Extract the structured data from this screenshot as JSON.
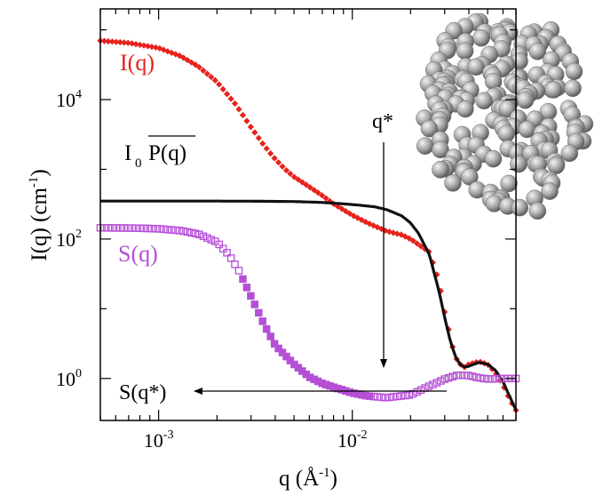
{
  "chart_data": {
    "type": "scatter",
    "x_scale": "log",
    "y_scale": "log",
    "xlim": [
      0.0005,
      0.07
    ],
    "ylim": [
      0.25,
      200000
    ],
    "grid": false,
    "ylabel_parts": {
      "main": "I(q) (cm",
      "sup": "-1",
      "close": ")"
    },
    "xlabel_parts": {
      "main": "q (Å",
      "sup": "-1",
      "close": ")"
    },
    "x_ticks": [
      {
        "value": 0.001,
        "base": "10",
        "exp": "-3"
      },
      {
        "value": 0.01,
        "base": "10",
        "exp": "-2"
      }
    ],
    "y_ticks": [
      {
        "value": 1,
        "base": "10",
        "exp": "0"
      },
      {
        "value": 100,
        "base": "10",
        "exp": "2"
      },
      {
        "value": 10000,
        "base": "10",
        "exp": "4"
      }
    ],
    "series": [
      {
        "name": "I(q)",
        "color": "#e8221c",
        "marker": "diamond",
        "x": [
          0.0005,
          0.0007,
          0.001,
          0.0013,
          0.0016,
          0.002,
          0.0025,
          0.003,
          0.0035,
          0.004,
          0.0045,
          0.005,
          0.006,
          0.007,
          0.008,
          0.01,
          0.012,
          0.015,
          0.018,
          0.02,
          0.025,
          0.028,
          0.03,
          0.033,
          0.035,
          0.038,
          0.04,
          0.045,
          0.05,
          0.055,
          0.06,
          0.065,
          0.07
        ],
        "y": [
          70000,
          65000,
          55000,
          42000,
          30000,
          18000,
          8500,
          4000,
          2200,
          1400,
          1000,
          780,
          560,
          420,
          320,
          220,
          170,
          130,
          115,
          100,
          65,
          25,
          9,
          2.8,
          1.7,
          1.45,
          1.6,
          1.75,
          1.6,
          1.2,
          0.8,
          0.5,
          0.35
        ]
      },
      {
        "name": "I0 P(q)",
        "color": "#111111",
        "marker": "line",
        "x": [
          0.0005,
          0.001,
          0.002,
          0.003,
          0.005,
          0.007,
          0.009,
          0.011,
          0.013,
          0.015,
          0.018,
          0.02,
          0.022,
          0.025,
          0.028,
          0.03,
          0.032,
          0.034,
          0.036,
          0.038,
          0.04,
          0.045,
          0.05,
          0.055,
          0.06,
          0.065,
          0.07
        ],
        "y": [
          350,
          350,
          350,
          349,
          345,
          335,
          320,
          305,
          290,
          265,
          215,
          170,
          120,
          60,
          18,
          7.5,
          3.5,
          2.1,
          1.6,
          1.45,
          1.5,
          1.7,
          1.6,
          1.3,
          0.9,
          0.55,
          0.35
        ]
      },
      {
        "name": "S(q)",
        "color": "#b54fd6",
        "marker": "square",
        "x": [
          0.0005,
          0.0008,
          0.001,
          0.0013,
          0.0016,
          0.002,
          0.0023,
          0.0026,
          0.003,
          0.0035,
          0.004,
          0.005,
          0.006,
          0.007,
          0.008,
          0.01,
          0.012,
          0.015,
          0.02,
          0.025,
          0.03,
          0.035,
          0.04,
          0.045,
          0.05,
          0.06,
          0.07
        ],
        "y": [
          145,
          143,
          140,
          132,
          118,
          90,
          60,
          35,
          15,
          6,
          3,
          1.6,
          1.05,
          0.85,
          0.75,
          0.62,
          0.56,
          0.53,
          0.58,
          0.78,
          0.98,
          1.12,
          1.1,
          1.02,
          0.98,
          1.0,
          1.0
        ]
      }
    ],
    "labels": {
      "iq": "I(q)",
      "ipq_main": "I",
      "ipq_sub": "0",
      "ipq_p": "P(q)",
      "sq": "S(q)",
      "qstar": "q*",
      "sqstar": "S(q*)"
    },
    "q_star": 0.015,
    "s_q_star": 0.53,
    "inset_icon": "sphere-aggregate"
  }
}
